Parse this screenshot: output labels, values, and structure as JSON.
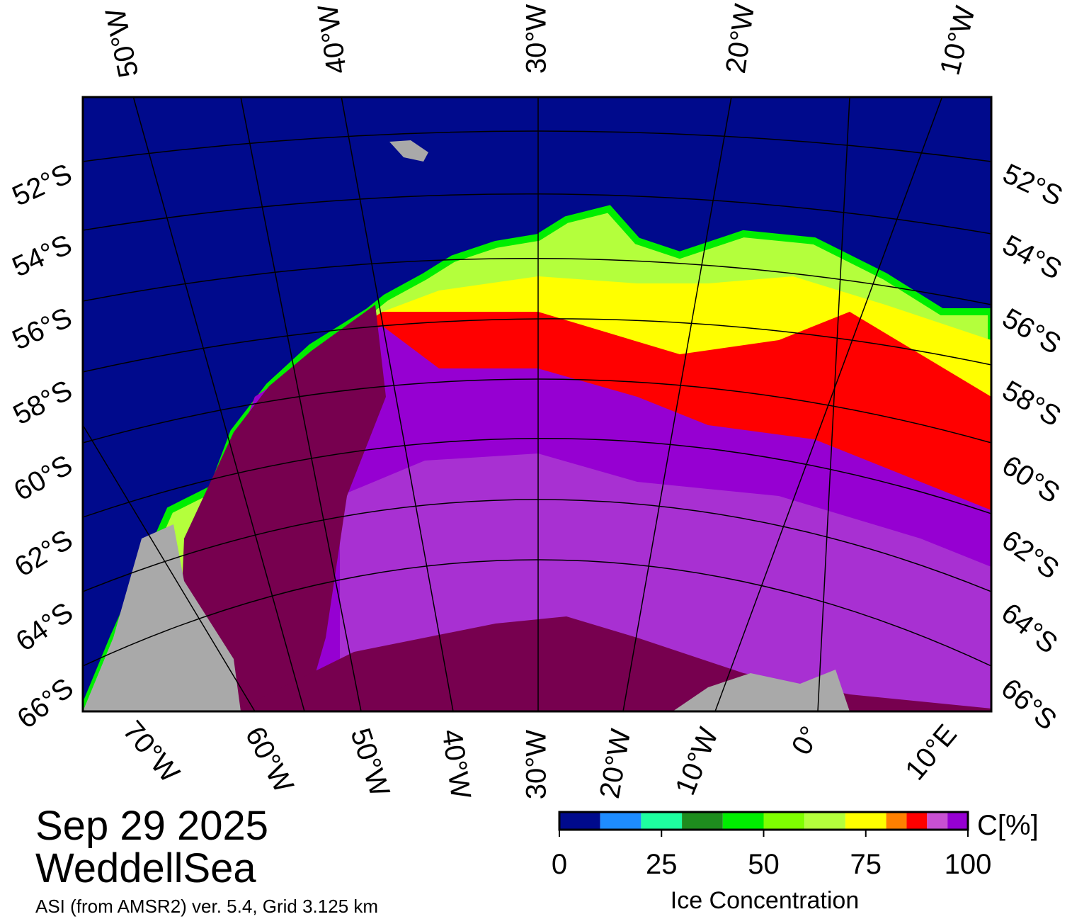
{
  "map": {
    "top_labels": [
      "50°W",
      "40°W",
      "30°W",
      "20°W",
      "10°W"
    ],
    "left_labels": [
      "52°S",
      "54°S",
      "56°S",
      "58°S",
      "60°S",
      "62°S",
      "64°S",
      "66°S"
    ],
    "right_labels": [
      "52°S",
      "54°S",
      "56°S",
      "58°S",
      "60°S",
      "62°S",
      "64°S",
      "66°S"
    ],
    "bottom_labels": [
      "70°W",
      "60°W",
      "50°W",
      "40°W",
      "30°W",
      "20°W",
      "10°W",
      "0°",
      "10°E"
    ]
  },
  "caption": {
    "date": "Sep 29 2025",
    "region": "WeddellSea",
    "source": "ASI (from AMSR2) ver. 5.4,  Grid 3.125 km"
  },
  "colorbar": {
    "bounds": [
      0,
      10,
      20,
      30,
      40,
      50,
      60,
      70,
      80,
      85,
      90,
      95,
      100
    ],
    "colors": [
      "#000a8c",
      "#1e8cff",
      "#1effa0",
      "#1e8c1e",
      "#00ee00",
      "#7fff00",
      "#b4ff3c",
      "#ffff00",
      "#ff8000",
      "#ff0000",
      "#c850d2",
      "#9600d2"
    ],
    "lim": [
      0,
      100
    ],
    "ticks": [
      0,
      25,
      50,
      75,
      100
    ],
    "unit": "C[%]",
    "label": "Ice Concentration"
  }
}
